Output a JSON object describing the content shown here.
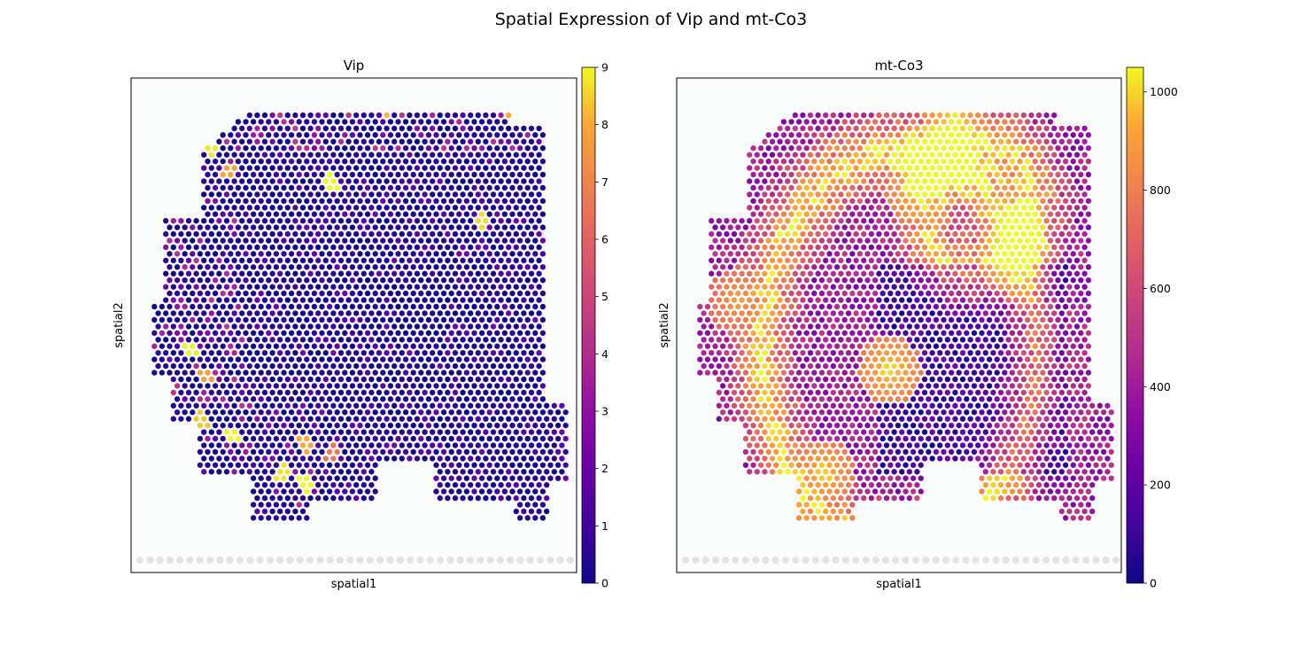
{
  "figure": {
    "title": "Spatial Expression of Vip and mt-Co3"
  },
  "chart_data": [
    {
      "type": "scatter",
      "title": "Vip",
      "xlabel": "spatial1",
      "ylabel": "spatial2",
      "colormap": "plasma",
      "colorbar": {
        "min": 0,
        "max": 9,
        "ticks": [
          0,
          1,
          2,
          3,
          4,
          5,
          6,
          7,
          8,
          9
        ]
      },
      "description_of_values": "Most spots near 0-1 (dark blue); scattered high spots (up to ~9) near the top edge, left margin, and lower-left region",
      "hotspots": [
        {
          "x": 0.32,
          "y": 0.96,
          "value": 8.5
        },
        {
          "x": 0.58,
          "y": 0.94,
          "value": 8.2
        },
        {
          "x": 0.86,
          "y": 0.93,
          "value": 8.0
        },
        {
          "x": 0.4,
          "y": 0.95,
          "value": 7.5
        },
        {
          "x": 0.18,
          "y": 0.86,
          "value": 8.8
        },
        {
          "x": 0.22,
          "y": 0.81,
          "value": 7.8
        },
        {
          "x": 0.45,
          "y": 0.79,
          "value": 9.0
        },
        {
          "x": 0.79,
          "y": 0.71,
          "value": 8.6
        },
        {
          "x": 0.13,
          "y": 0.45,
          "value": 8.9
        },
        {
          "x": 0.17,
          "y": 0.4,
          "value": 7.7
        },
        {
          "x": 0.16,
          "y": 0.31,
          "value": 8.4
        },
        {
          "x": 0.23,
          "y": 0.28,
          "value": 9.0
        },
        {
          "x": 0.39,
          "y": 0.26,
          "value": 8.0
        },
        {
          "x": 0.34,
          "y": 0.2,
          "value": 8.7
        },
        {
          "x": 0.39,
          "y": 0.18,
          "value": 9.0
        },
        {
          "x": 0.45,
          "y": 0.24,
          "value": 6.5
        }
      ]
    },
    {
      "type": "scatter",
      "title": "mt-Co3",
      "xlabel": "spatial1",
      "ylabel": "spatial2",
      "colormap": "plasma",
      "colorbar": {
        "min": 0,
        "max": 1050,
        "ticks": [
          0,
          200,
          400,
          600,
          800,
          1000
        ]
      },
      "description_of_values": "Broad expression 300-1050; high bands (~900-1050) along outer cortex and hippocampal arc, lower (~200-400) in central/right interior",
      "hotspots": [
        {
          "x": 0.62,
          "y": 0.91,
          "value": 1030
        },
        {
          "x": 0.54,
          "y": 0.77,
          "value": 990
        },
        {
          "x": 0.75,
          "y": 0.64,
          "value": 1020
        },
        {
          "x": 0.48,
          "y": 0.41,
          "value": 1000
        },
        {
          "x": 0.33,
          "y": 0.2,
          "value": 980
        },
        {
          "x": 0.14,
          "y": 0.55,
          "value": 900
        }
      ]
    }
  ]
}
